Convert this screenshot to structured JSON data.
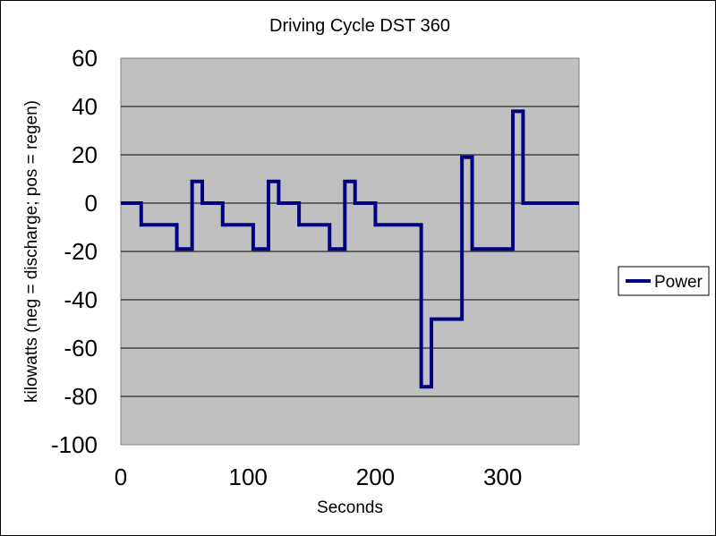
{
  "chart_data": {
    "type": "line",
    "title": "Driving Cycle DST 360",
    "xlabel": "Seconds",
    "ylabel": "kilowatts (neg = discharge; pos = regen)",
    "xlim": [
      0,
      360
    ],
    "ylim": [
      -100,
      60
    ],
    "x_ticks": [
      0,
      100,
      200,
      300
    ],
    "y_ticks": [
      60,
      40,
      20,
      0,
      -20,
      -40,
      -60,
      -80,
      -100
    ],
    "grid": "horizontal",
    "plot_background": "#c0c0c0",
    "legend_position": "right",
    "series": [
      {
        "name": "Power",
        "color": "#000080",
        "step": true,
        "x": [
          0,
          16,
          44,
          56,
          64,
          80,
          104,
          116,
          124,
          140,
          164,
          176,
          184,
          200,
          236,
          244,
          268,
          276,
          308,
          316,
          360
        ],
        "y": [
          0,
          -9,
          -19,
          9,
          0,
          -9,
          -19,
          9,
          0,
          -9,
          -19,
          9,
          0,
          -9,
          -76,
          -48,
          19,
          -19,
          38,
          0,
          0
        ]
      }
    ]
  }
}
